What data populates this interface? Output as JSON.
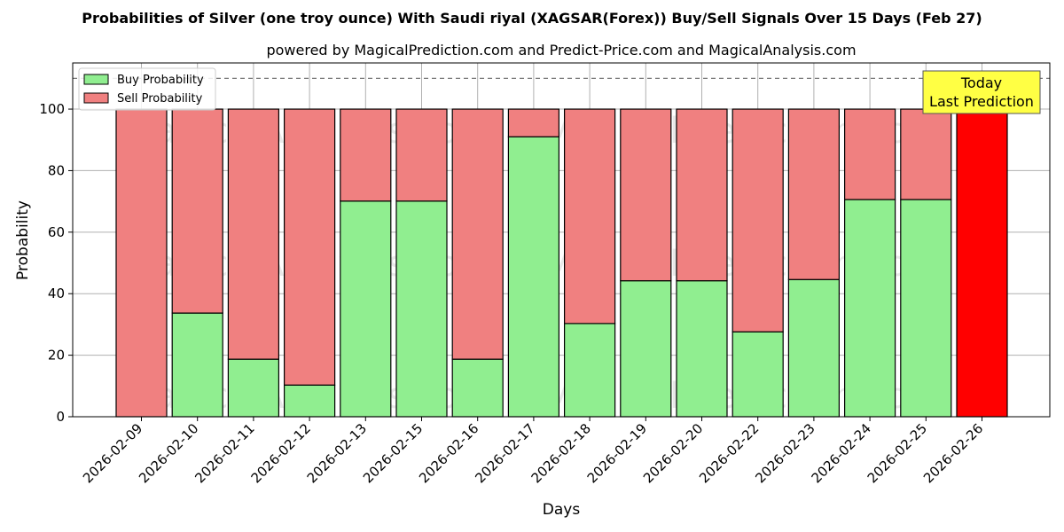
{
  "chart_data": {
    "type": "bar",
    "stacked": true,
    "title": "Probabilities of Silver (one troy ounce) With Saudi riyal (XAGSAR(Forex)) Buy/Sell Signals Over 15 Days (Feb 27)",
    "subtitle": "powered by MagicalPrediction.com and Predict-Price.com and MagicalAnalysis.com",
    "xlabel": "Days",
    "ylabel": "Probability",
    "ylim": [
      0,
      115
    ],
    "yticks": [
      0,
      20,
      40,
      60,
      80,
      100
    ],
    "reference_line": 110,
    "grid": true,
    "legend_position": "top-left",
    "categories": [
      "2026-02-09",
      "2026-02-10",
      "2026-02-11",
      "2026-02-12",
      "2026-02-13",
      "2026-02-15",
      "2026-02-16",
      "2026-02-17",
      "2026-02-18",
      "2026-02-19",
      "2026-02-20",
      "2026-02-22",
      "2026-02-23",
      "2026-02-24",
      "2026-02-25",
      "2026-02-26"
    ],
    "series": [
      {
        "name": "Buy Probability",
        "color": "#90ee90",
        "values": [
          0,
          33.7,
          18.7,
          10.3,
          70.1,
          70.1,
          18.7,
          91.0,
          30.3,
          44.2,
          44.2,
          27.6,
          44.6,
          70.6,
          70.6,
          0
        ]
      },
      {
        "name": "Sell Probability",
        "color": "#f08080",
        "values": [
          100,
          66.3,
          81.3,
          89.7,
          29.9,
          29.9,
          81.3,
          9.0,
          69.7,
          55.8,
          55.8,
          72.4,
          55.4,
          29.4,
          29.4,
          100
        ]
      }
    ],
    "highlight": {
      "index": 15,
      "color": "#ff0000"
    },
    "annotation": {
      "lines": [
        "Today",
        "Last Prediction"
      ],
      "background": "#ffff44"
    },
    "watermark": [
      "MagicalAnalysis.com",
      "MagicalPrediction.com"
    ]
  }
}
